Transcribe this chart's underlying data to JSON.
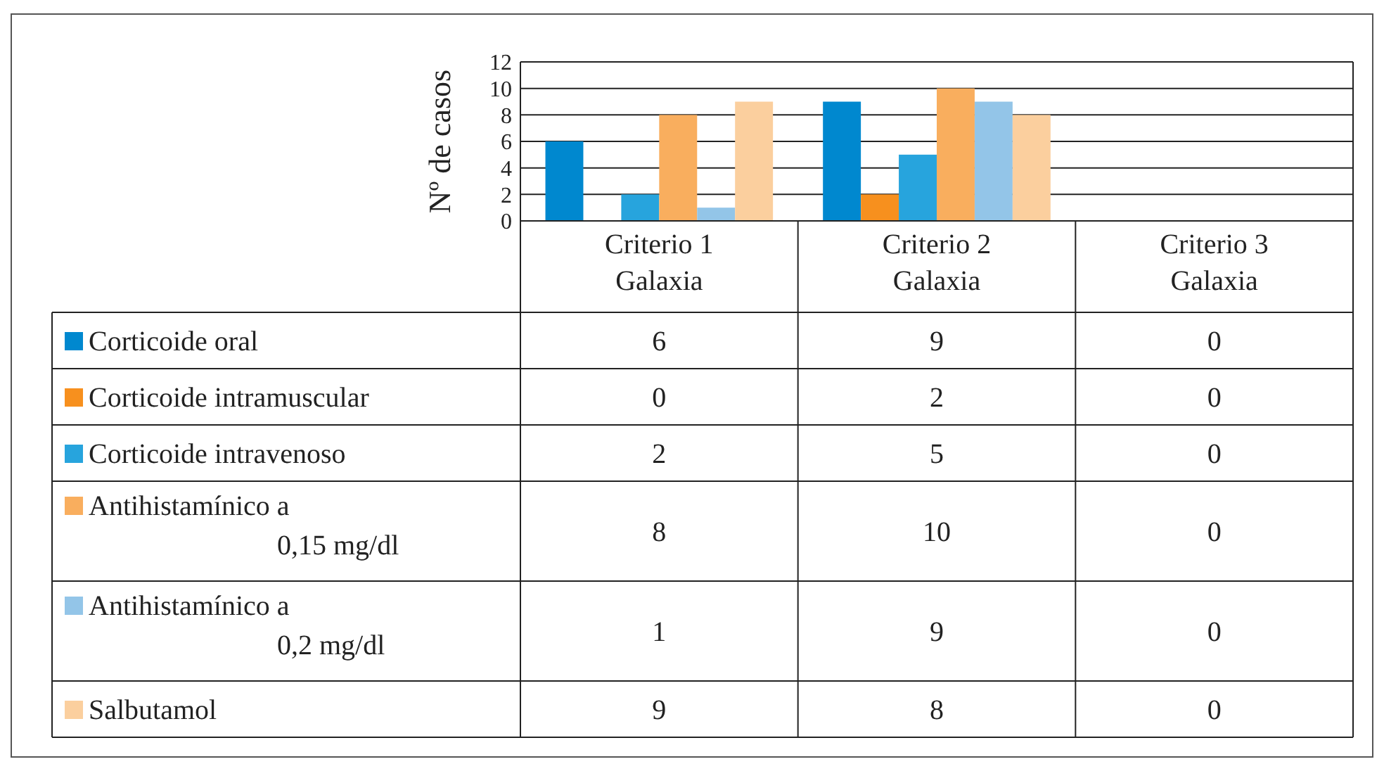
{
  "chart_data": {
    "type": "bar",
    "ylabel": "Nº de casos",
    "categories": [
      "Criterio 1 Galaxia",
      "Criterio 2 Galaxia",
      "Criterio 3 Galaxia"
    ],
    "series": [
      {
        "name": "Corticoide oral",
        "color": "#0088cf",
        "values": [
          6,
          9,
          0
        ]
      },
      {
        "name": "Corticoide intramuscular",
        "color": "#f7901e",
        "values": [
          0,
          2,
          0
        ]
      },
      {
        "name": "Corticoide intravenoso",
        "color": "#27a4dd",
        "values": [
          2,
          5,
          0
        ]
      },
      {
        "name": "Antihistamínico a 0,15 mg/dl",
        "color": "#f9ae5e",
        "values": [
          8,
          10,
          0
        ]
      },
      {
        "name": "Antihistamínico a 0,2 mg/dl",
        "color": "#93c5e8",
        "values": [
          1,
          9,
          0
        ]
      },
      {
        "name": "Salbutamol",
        "color": "#fbcf9e",
        "values": [
          9,
          8,
          0
        ]
      }
    ],
    "ylim": [
      0,
      12
    ],
    "yticks": [
      0,
      2,
      4,
      6,
      8,
      10,
      12
    ],
    "grid": "y",
    "legend": "left",
    "data_labels": true
  }
}
